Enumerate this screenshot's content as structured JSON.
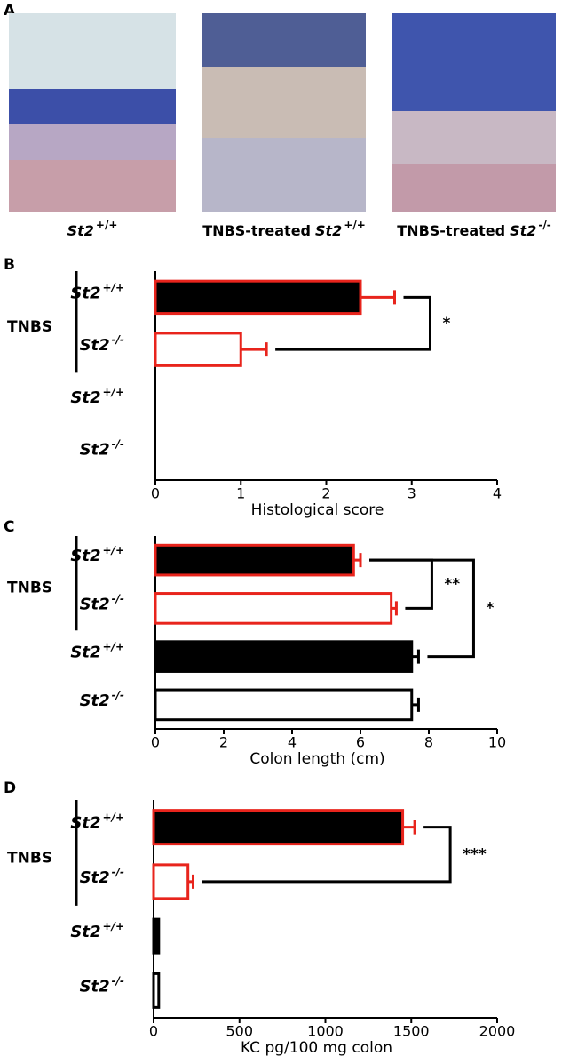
{
  "panel_a": {
    "label": "A",
    "images": [
      {
        "gene": "St2",
        "genotype": "+/+"
      },
      {
        "prefix": "TNBS-treated",
        "gene": "St2",
        "genotype": "+/+"
      },
      {
        "prefix": "TNBS-treated",
        "gene": "St2",
        "genotype": "-/-"
      }
    ]
  },
  "chart_data": [
    {
      "type": "bar",
      "panel_label": "B",
      "group_label": "TNBS",
      "categories": [
        {
          "gene": "St2",
          "genotype": "+/+"
        },
        {
          "gene": "St2",
          "genotype": "-/-"
        },
        {
          "gene": "St2",
          "genotype": "+/+"
        },
        {
          "gene": "St2",
          "genotype": "-/-"
        }
      ],
      "values": [
        2.4,
        1.0,
        0,
        0
      ],
      "errors": [
        0.4,
        0.3,
        null,
        null
      ],
      "fill_colors": [
        "#000000",
        "#ffffff",
        "#000000",
        "#ffffff"
      ],
      "edge_colors": [
        "#e8241c",
        "#e8241c",
        "#000000",
        "#000000"
      ],
      "xlabel": "Histological score",
      "xlim": [
        0,
        4
      ],
      "xticks": [
        0,
        1,
        2,
        3,
        4
      ],
      "annotations": [
        {
          "text": "*",
          "between": [
            0,
            1
          ]
        }
      ]
    },
    {
      "type": "bar",
      "panel_label": "C",
      "group_label": "TNBS",
      "categories": [
        {
          "gene": "St2",
          "genotype": "+/+"
        },
        {
          "gene": "St2",
          "genotype": "-/-"
        },
        {
          "gene": "St2",
          "genotype": "+/+"
        },
        {
          "gene": "St2",
          "genotype": "-/-"
        }
      ],
      "values": [
        5.8,
        6.9,
        7.5,
        7.5
      ],
      "errors": [
        0.2,
        0.15,
        0.2,
        0.2
      ],
      "fill_colors": [
        "#000000",
        "#ffffff",
        "#000000",
        "#ffffff"
      ],
      "edge_colors": [
        "#e8241c",
        "#e8241c",
        "#000000",
        "#000000"
      ],
      "xlabel": "Colon length (cm)",
      "xlim": [
        0,
        10
      ],
      "xticks": [
        0,
        2,
        4,
        6,
        8,
        10
      ],
      "annotations": [
        {
          "text": "**",
          "between": [
            0,
            1
          ]
        },
        {
          "text": "*",
          "between": [
            0,
            2
          ]
        }
      ]
    },
    {
      "type": "bar",
      "panel_label": "D",
      "group_label": "TNBS",
      "categories": [
        {
          "gene": "St2",
          "genotype": "+/+"
        },
        {
          "gene": "St2",
          "genotype": "-/-"
        },
        {
          "gene": "St2",
          "genotype": "+/+"
        },
        {
          "gene": "St2",
          "genotype": "-/-"
        }
      ],
      "values": [
        1450,
        200,
        30,
        30
      ],
      "errors": [
        70,
        30,
        null,
        null
      ],
      "fill_colors": [
        "#000000",
        "#ffffff",
        "#000000",
        "#ffffff"
      ],
      "edge_colors": [
        "#e8241c",
        "#e8241c",
        "#000000",
        "#000000"
      ],
      "xlabel": "KC pg/100 mg colon",
      "xlim": [
        0,
        2000
      ],
      "xticks": [
        0,
        500,
        1000,
        1500,
        2000
      ],
      "annotations": [
        {
          "text": "***",
          "between": [
            0,
            1
          ]
        }
      ]
    }
  ]
}
